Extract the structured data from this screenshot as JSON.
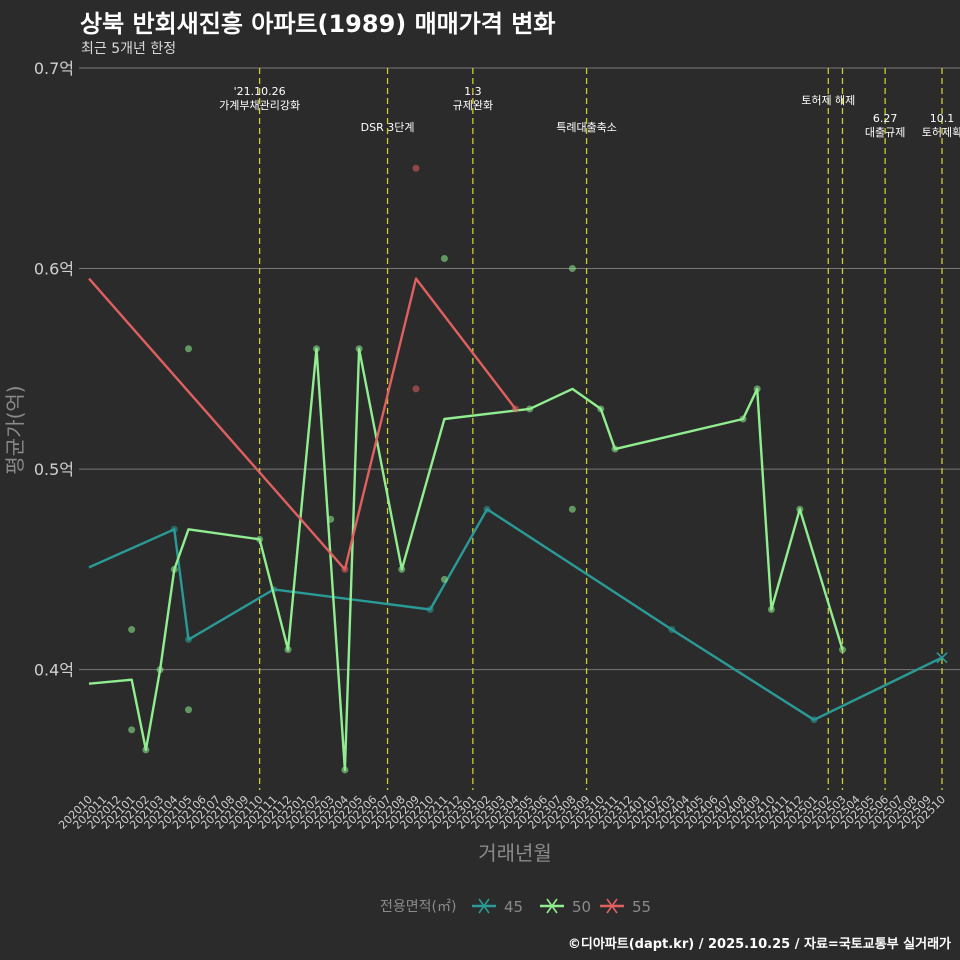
{
  "title": "상북 반회새진흥 아파트(1989) 매매가격 변화",
  "subtitle": "최근 5개년 한정",
  "caption": "©디아파트(dapt.kr) / 2025.10.25 / 자료=국토교통부 실거래가",
  "colors": {
    "background": "#2b2b2b",
    "grid": "#777777",
    "event_line": "#cccc33",
    "s45": "#2a9a96",
    "s50": "#90ee90",
    "s55": "#e06060",
    "text": "#ffffff",
    "axis_text": "#d0d0d0",
    "axis_title": "#8a8a8a"
  },
  "chart_data": {
    "type": "line",
    "xlabel": "거래년월",
    "ylabel": "평균가(억)",
    "ylim": [
      0.34,
      0.7
    ],
    "yticks": [
      {
        "value": 0.4,
        "label": "0.4억"
      },
      {
        "value": 0.5,
        "label": "0.5억"
      },
      {
        "value": 0.6,
        "label": "0.6억"
      },
      {
        "value": 0.7,
        "label": "0.7억"
      }
    ],
    "categories": [
      "202010",
      "202011",
      "202012",
      "202101",
      "202102",
      "202103",
      "202104",
      "202105",
      "202106",
      "202107",
      "202108",
      "202109",
      "202110",
      "202111",
      "202112",
      "202201",
      "202202",
      "202203",
      "202204",
      "202205",
      "202206",
      "202207",
      "202208",
      "202209",
      "202210",
      "202211",
      "202212",
      "202301",
      "202302",
      "202303",
      "202304",
      "202305",
      "202306",
      "202307",
      "202308",
      "202309",
      "202310",
      "202311",
      "202312",
      "202401",
      "202402",
      "202403",
      "202404",
      "202405",
      "202406",
      "202407",
      "202408",
      "202409",
      "202410",
      "202411",
      "202412",
      "202501",
      "202502",
      "202503",
      "202504",
      "202505",
      "202506",
      "202507",
      "202508",
      "202509",
      "202510"
    ],
    "legend_title": "전용면적(㎡)",
    "legend_position": "bottom",
    "series": [
      {
        "name": "45",
        "color": "#2a9a96",
        "line": [
          [
            "202010",
            0.451
          ],
          [
            "202104",
            0.47
          ],
          [
            "202105",
            0.415
          ],
          [
            "202111",
            0.44
          ],
          [
            "202210",
            0.43
          ],
          [
            "202302",
            0.48
          ],
          [
            "202403",
            0.42
          ],
          [
            "202501",
            0.375
          ],
          [
            "202510",
            0.406
          ]
        ],
        "points": [
          [
            "202104",
            0.47
          ],
          [
            "202105",
            0.415
          ],
          [
            "202111",
            0.44
          ],
          [
            "202210",
            0.43
          ],
          [
            "202302",
            0.48
          ],
          [
            "202403",
            0.42
          ],
          [
            "202501",
            0.375
          ]
        ]
      },
      {
        "name": "50",
        "color": "#90ee90",
        "line": [
          [
            "202010",
            0.393
          ],
          [
            "202101",
            0.395
          ],
          [
            "202102",
            0.36
          ],
          [
            "202103",
            0.4
          ],
          [
            "202104",
            0.45
          ],
          [
            "202105",
            0.47
          ],
          [
            "202110",
            0.465
          ],
          [
            "202112",
            0.41
          ],
          [
            "202202",
            0.56
          ],
          [
            "202204",
            0.35
          ],
          [
            "202205",
            0.56
          ],
          [
            "202208",
            0.45
          ],
          [
            "202211",
            0.525
          ],
          [
            "202305",
            0.53
          ],
          [
            "202308",
            0.54
          ],
          [
            "202310",
            0.53
          ],
          [
            "202311",
            0.51
          ],
          [
            "202408",
            0.525
          ],
          [
            "202409",
            0.54
          ],
          [
            "202410",
            0.43
          ],
          [
            "202412",
            0.48
          ],
          [
            "202503",
            0.41
          ]
        ],
        "points": [
          [
            "202101",
            0.37
          ],
          [
            "202101",
            0.42
          ],
          [
            "202102",
            0.36
          ],
          [
            "202103",
            0.4
          ],
          [
            "202104",
            0.45
          ],
          [
            "202105",
            0.56
          ],
          [
            "202105",
            0.38
          ],
          [
            "202110",
            0.465
          ],
          [
            "202112",
            0.41
          ],
          [
            "202202",
            0.56
          ],
          [
            "202203",
            0.475
          ],
          [
            "202204",
            0.35
          ],
          [
            "202205",
            0.56
          ],
          [
            "202208",
            0.45
          ],
          [
            "202211",
            0.605
          ],
          [
            "202211",
            0.445
          ],
          [
            "202305",
            0.53
          ],
          [
            "202308",
            0.6
          ],
          [
            "202308",
            0.48
          ],
          [
            "202310",
            0.53
          ],
          [
            "202311",
            0.51
          ],
          [
            "202408",
            0.525
          ],
          [
            "202409",
            0.54
          ],
          [
            "202410",
            0.43
          ],
          [
            "202412",
            0.48
          ],
          [
            "202503",
            0.41
          ]
        ]
      },
      {
        "name": "55",
        "color": "#e06060",
        "line": [
          [
            "202010",
            0.595
          ],
          [
            "202204",
            0.45
          ],
          [
            "202209",
            0.595
          ],
          [
            "202304",
            0.53
          ]
        ],
        "points": [
          [
            "202204",
            0.45
          ],
          [
            "202209",
            0.65
          ],
          [
            "202209",
            0.54
          ],
          [
            "202304",
            0.53
          ]
        ]
      }
    ],
    "events": [
      {
        "x": "202110",
        "lines": [
          "'21.10.26",
          "가계부채관리강화"
        ],
        "level": 1
      },
      {
        "x": "202207",
        "lines": [
          "DSR 3단계"
        ],
        "level": 3
      },
      {
        "x": "202301",
        "lines": [
          "1.3",
          "규제완화"
        ],
        "level": 1
      },
      {
        "x": "202309",
        "lines": [
          "특례대출축소"
        ],
        "level": 3
      },
      {
        "x": "202502",
        "lines": [
          "토허제 해제"
        ],
        "level": 2
      },
      {
        "x": "202503",
        "lines": [],
        "level": 2
      },
      {
        "x": "202506",
        "lines": [
          "6.27",
          "대출규제"
        ],
        "level": 4
      },
      {
        "x": "202510",
        "lines": [
          "10.1",
          "토허제확"
        ],
        "level": 4
      }
    ]
  }
}
